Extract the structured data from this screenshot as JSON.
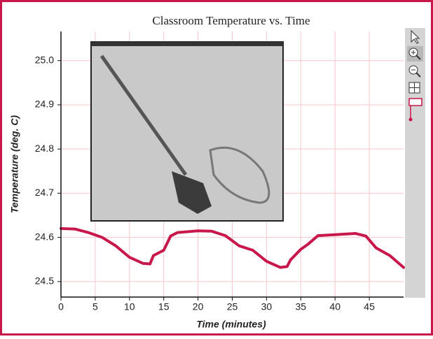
{
  "chart_data": {
    "type": "line",
    "title": "Classroom Temperature vs. Time",
    "x_label": "Time (minutes)",
    "y_label": "Temperature (deg. C)",
    "x": [
      0,
      2,
      4,
      6,
      8,
      10,
      12,
      13,
      13.5,
      15,
      16,
      17,
      20,
      22,
      24,
      26,
      28,
      30,
      32,
      33,
      33.5,
      35,
      36,
      37.5,
      40,
      43,
      44.5,
      46,
      48,
      50
    ],
    "series": [
      {
        "color": "#c8174a",
        "values": [
          24.62,
          24.619,
          24.611,
          24.6,
          24.581,
          24.555,
          24.541,
          24.54,
          24.559,
          24.571,
          24.603,
          24.611,
          24.615,
          24.614,
          24.604,
          24.581,
          24.571,
          24.546,
          24.532,
          24.534,
          24.549,
          24.573,
          24.584,
          24.604,
          24.606,
          24.609,
          24.603,
          24.576,
          24.559,
          24.532
        ]
      }
    ],
    "xlim": [
      0,
      50
    ],
    "ylim": [
      24.465,
      25.066
    ],
    "xticks": [
      0,
      5,
      10,
      15,
      20,
      25,
      30,
      35,
      40,
      45
    ],
    "yticks": [
      24.5,
      24.6,
      24.7,
      24.8,
      24.9,
      {
        "value": 25,
        "label": "25.0"
      }
    ],
    "grid": true,
    "grid_color": "#f6c6cc"
  }
}
